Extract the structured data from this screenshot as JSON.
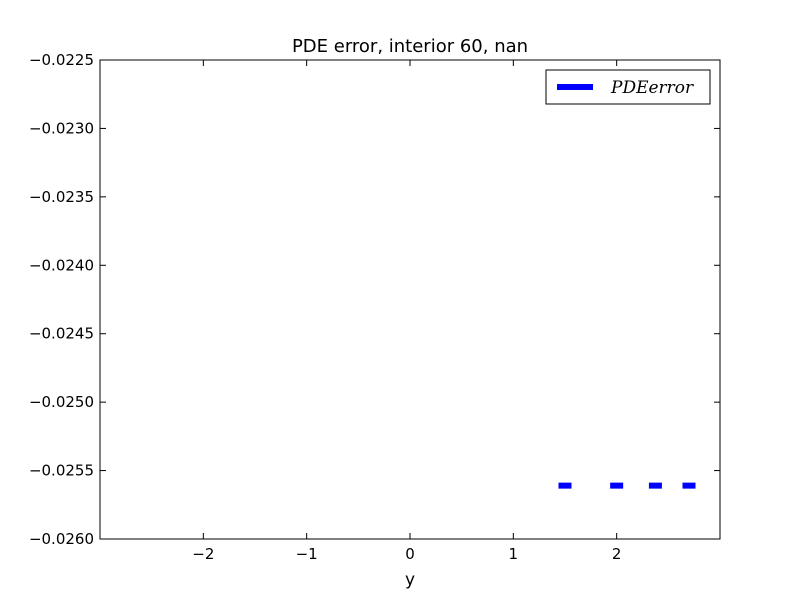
{
  "chart_data": {
    "type": "line",
    "title": "PDE error, interior 60, nan",
    "xlabel": "y",
    "ylabel": "",
    "xlim": [
      -3,
      3
    ],
    "ylim": [
      -0.026,
      -0.0225
    ],
    "xticks": [
      -2,
      -1,
      0,
      1,
      2
    ],
    "xtick_labels": [
      "−2",
      "−1",
      "0",
      "1",
      "2"
    ],
    "yticks": [
      -0.026,
      -0.0255,
      -0.025,
      -0.0245,
      -0.024,
      -0.0235,
      -0.023,
      -0.0225
    ],
    "ytick_labels": [
      "−0.0260",
      "−0.0255",
      "−0.0250",
      "−0.0245",
      "−0.0240",
      "−0.0235",
      "−0.0230",
      "−0.0225"
    ],
    "grid": false,
    "legend_position": "top-right",
    "series": [
      {
        "name": "PDEerror",
        "legend_label": "PDEerror",
        "color": "#0000ff",
        "linestyle": "dashed",
        "x": [
          1.5,
          2.0,
          2.375,
          2.7
        ],
        "y": [
          -0.02561,
          -0.02561,
          -0.02561,
          -0.02561
        ]
      }
    ]
  }
}
